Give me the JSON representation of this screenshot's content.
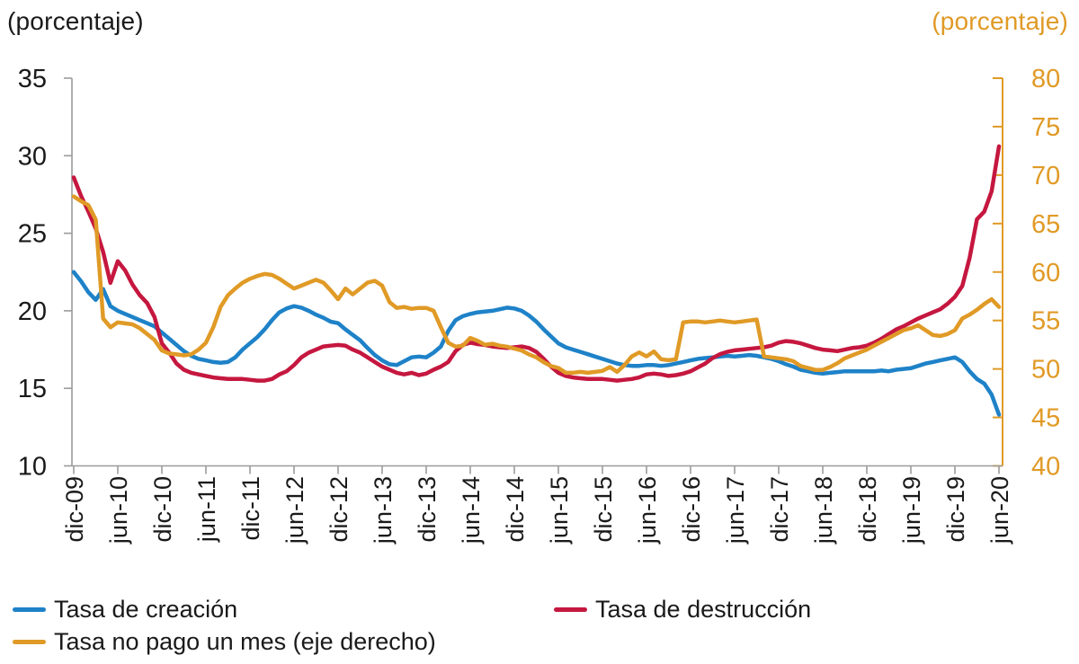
{
  "chart_data": {
    "type": "line",
    "x_start": "dic-09",
    "x_frequency": "monthly",
    "x_tick_labels": [
      "dic-09",
      "jun-10",
      "dic-10",
      "jun-11",
      "dic-11",
      "jun-12",
      "dic-12",
      "jun-13",
      "dic-13",
      "jun-14",
      "dic-14",
      "jun-15",
      "dic-15",
      "jun-16",
      "dic-16",
      "jun-17",
      "dic-17",
      "jun-18",
      "dic-18",
      "jun-19",
      "dic-19",
      "jun-20"
    ],
    "left_axis": {
      "title": "(porcentaje)",
      "min": 10,
      "max": 35,
      "ticks": [
        35,
        30,
        25,
        20,
        15,
        10
      ],
      "color": "#1a1a1a"
    },
    "right_axis": {
      "title": "(porcentaje)",
      "min": 40,
      "max": 80,
      "ticks": [
        80,
        75,
        70,
        65,
        60,
        55,
        50,
        45,
        40
      ],
      "color": "#E09A26"
    },
    "grid": false,
    "legend_position": "bottom",
    "series": [
      {
        "name": "Tasa de creación",
        "axis": "left",
        "color": "#1E82C8",
        "values": [
          22.5,
          21.9,
          21.2,
          20.7,
          21.4,
          20.3,
          20.0,
          19.8,
          19.6,
          19.4,
          19.2,
          19.0,
          18.6,
          18.2,
          17.8,
          17.4,
          17.1,
          16.9,
          16.8,
          16.7,
          16.65,
          16.7,
          17.0,
          17.5,
          17.9,
          18.3,
          18.8,
          19.4,
          19.9,
          20.15,
          20.3,
          20.2,
          20.0,
          19.75,
          19.55,
          19.3,
          19.2,
          18.8,
          18.45,
          18.1,
          17.6,
          17.15,
          16.8,
          16.55,
          16.5,
          16.75,
          17.0,
          17.05,
          17.0,
          17.3,
          17.7,
          18.7,
          19.4,
          19.65,
          19.8,
          19.9,
          19.95,
          20.0,
          20.1,
          20.2,
          20.15,
          20.0,
          19.7,
          19.3,
          18.8,
          18.35,
          17.9,
          17.65,
          17.5,
          17.35,
          17.2,
          17.05,
          16.9,
          16.75,
          16.6,
          16.5,
          16.45,
          16.45,
          16.5,
          16.5,
          16.45,
          16.5,
          16.6,
          16.7,
          16.8,
          16.9,
          16.95,
          17.0,
          17.05,
          17.1,
          17.05,
          17.1,
          17.15,
          17.1,
          17.0,
          16.9,
          16.75,
          16.55,
          16.4,
          16.2,
          16.1,
          16.0,
          15.95,
          16.0,
          16.05,
          16.1,
          16.1,
          16.1,
          16.1,
          16.1,
          16.15,
          16.1,
          16.2,
          16.25,
          16.3,
          16.45,
          16.6,
          16.7,
          16.8,
          16.9,
          17.0,
          16.7,
          16.1,
          15.6,
          15.3,
          14.6,
          13.3
        ]
      },
      {
        "name": "Tasa de destrucción",
        "axis": "left",
        "color": "#C5173F",
        "values": [
          28.6,
          27.4,
          26.4,
          25.3,
          23.8,
          21.8,
          23.2,
          22.6,
          21.7,
          21.0,
          20.5,
          19.6,
          17.9,
          17.3,
          16.6,
          16.2,
          16.0,
          15.9,
          15.8,
          15.7,
          15.65,
          15.6,
          15.6,
          15.6,
          15.55,
          15.5,
          15.5,
          15.6,
          15.9,
          16.1,
          16.5,
          17.0,
          17.3,
          17.5,
          17.7,
          17.75,
          17.8,
          17.75,
          17.5,
          17.3,
          17.0,
          16.7,
          16.4,
          16.2,
          16.0,
          15.9,
          16.0,
          15.85,
          15.95,
          16.2,
          16.4,
          16.7,
          17.4,
          17.8,
          17.95,
          17.85,
          17.8,
          17.7,
          17.65,
          17.6,
          17.65,
          17.7,
          17.6,
          17.35,
          16.9,
          16.4,
          16.0,
          15.8,
          15.7,
          15.65,
          15.6,
          15.6,
          15.6,
          15.55,
          15.5,
          15.55,
          15.6,
          15.7,
          15.9,
          15.95,
          15.9,
          15.8,
          15.85,
          15.95,
          16.1,
          16.35,
          16.6,
          16.95,
          17.2,
          17.35,
          17.45,
          17.5,
          17.55,
          17.6,
          17.65,
          17.75,
          17.95,
          18.05,
          18.0,
          17.9,
          17.75,
          17.6,
          17.5,
          17.45,
          17.4,
          17.5,
          17.6,
          17.65,
          17.75,
          17.95,
          18.2,
          18.5,
          18.8,
          19.0,
          19.25,
          19.5,
          19.7,
          19.9,
          20.1,
          20.45,
          20.9,
          21.6,
          23.4,
          25.9,
          26.4,
          27.7,
          30.6
        ]
      },
      {
        "name": "Tasa no pago un mes (eje derecho)",
        "axis": "right",
        "color": "#E09A26",
        "values": [
          67.8,
          67.3,
          66.9,
          65.4,
          55.2,
          54.3,
          54.8,
          54.7,
          54.6,
          54.2,
          53.6,
          53.0,
          51.9,
          51.6,
          51.5,
          51.4,
          51.5,
          52.0,
          52.7,
          54.3,
          56.4,
          57.6,
          58.3,
          58.9,
          59.3,
          59.6,
          59.8,
          59.7,
          59.3,
          58.8,
          58.3,
          58.6,
          58.9,
          59.2,
          58.9,
          58.1,
          57.2,
          58.3,
          57.7,
          58.3,
          58.9,
          59.1,
          58.6,
          56.9,
          56.3,
          56.4,
          56.2,
          56.3,
          56.3,
          56.0,
          54.3,
          52.7,
          52.3,
          52.4,
          53.2,
          52.9,
          52.5,
          52.6,
          52.4,
          52.3,
          52.1,
          51.9,
          51.5,
          51.2,
          50.7,
          50.3,
          50.1,
          49.6,
          49.6,
          49.7,
          49.6,
          49.7,
          49.8,
          50.2,
          49.7,
          50.4,
          51.3,
          51.7,
          51.3,
          51.8,
          51.0,
          50.9,
          51.0,
          54.8,
          54.9,
          54.9,
          54.8,
          54.9,
          55.0,
          54.9,
          54.8,
          54.9,
          55.0,
          55.1,
          51.3,
          51.2,
          51.1,
          51.0,
          50.8,
          50.3,
          50.1,
          49.9,
          49.9,
          50.2,
          50.6,
          51.1,
          51.4,
          51.7,
          52.0,
          52.4,
          52.8,
          53.2,
          53.6,
          54.0,
          54.2,
          54.5,
          54.0,
          53.5,
          53.4,
          53.6,
          54.0,
          55.2,
          55.6,
          56.1,
          56.7,
          57.2,
          56.4
        ]
      }
    ],
    "axis_line_color": "#9B9B9B"
  }
}
